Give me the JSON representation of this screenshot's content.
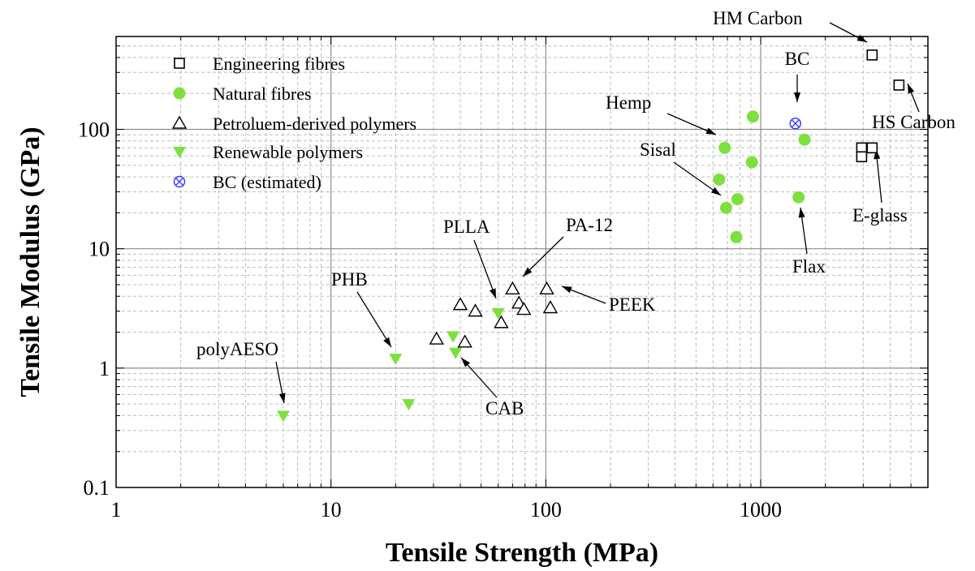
{
  "chart_data": {
    "type": "scatter",
    "xscale": "log",
    "yscale": "log",
    "xlim": [
      1,
      6000
    ],
    "ylim": [
      0.1,
      600
    ],
    "xlabel": "Tensile Strength (MPa)",
    "ylabel": "Tensile Modulus (GPa)",
    "x_ticks": [
      "1",
      "10",
      "100",
      "1000"
    ],
    "y_ticks": [
      "0.1",
      "1",
      "10",
      "100"
    ],
    "grid": true,
    "legend_position": "top-left",
    "series": [
      {
        "name": "Engineering fibres",
        "marker": "open-square",
        "color": "#000000",
        "points": [
          [
            3300,
            420
          ],
          [
            4400,
            235
          ],
          [
            3300,
            70
          ],
          [
            2950,
            70
          ],
          [
            2950,
            59
          ]
        ]
      },
      {
        "name": "Natural fibres",
        "marker": "filled-circle",
        "color": "#7ee03e",
        "points": [
          [
            920,
            128
          ],
          [
            1600,
            82
          ],
          [
            680,
            70
          ],
          [
            910,
            53
          ],
          [
            640,
            38
          ],
          [
            780,
            26
          ],
          [
            690,
            22
          ],
          [
            1500,
            27
          ],
          [
            770,
            12.5
          ]
        ]
      },
      {
        "name": "Petroluem-derived polymers",
        "marker": "open-triangle-up",
        "color": "#000000",
        "points": [
          [
            31,
            1.75
          ],
          [
            40,
            3.4
          ],
          [
            42,
            1.65
          ],
          [
            47,
            3.0
          ],
          [
            62,
            2.4
          ],
          [
            70,
            4.6
          ],
          [
            75,
            3.5
          ],
          [
            79,
            3.1
          ],
          [
            101,
            4.6
          ],
          [
            105,
            3.2
          ]
        ]
      },
      {
        "name": "Renewable polymers",
        "marker": "filled-triangle-down",
        "color": "#7ee03e",
        "points": [
          [
            6,
            0.4
          ],
          [
            20,
            1.2
          ],
          [
            23,
            0.5
          ],
          [
            37,
            1.85
          ],
          [
            38,
            1.35
          ],
          [
            60,
            2.9
          ]
        ]
      },
      {
        "name": "BC (estimated)",
        "marker": "crossed-circle",
        "color": "#3a3aff",
        "points": [
          [
            1450,
            112
          ]
        ]
      }
    ],
    "annotations": [
      {
        "text": "HM Carbon",
        "target": [
          3300,
          420
        ]
      },
      {
        "text": "BC",
        "target": [
          1450,
          112
        ]
      },
      {
        "text": "HS Carbon",
        "target": [
          4400,
          235
        ]
      },
      {
        "text": "Hemp",
        "target": [
          680,
          70
        ]
      },
      {
        "text": "Sisal",
        "target": [
          690,
          22
        ]
      },
      {
        "text": "E-glass",
        "target": [
          3300,
          70
        ]
      },
      {
        "text": "Flax",
        "target": [
          1500,
          27
        ]
      },
      {
        "text": "PLLA",
        "target": [
          60,
          2.9
        ]
      },
      {
        "text": "PA-12",
        "target": [
          70,
          4.6
        ]
      },
      {
        "text": "PEEK",
        "target": [
          101,
          4.6
        ]
      },
      {
        "text": "PHB",
        "target": [
          20,
          1.2
        ]
      },
      {
        "text": "polyAESO",
        "target": [
          6,
          0.4
        ]
      },
      {
        "text": "CAB",
        "target": [
          38,
          1.35
        ]
      }
    ]
  }
}
